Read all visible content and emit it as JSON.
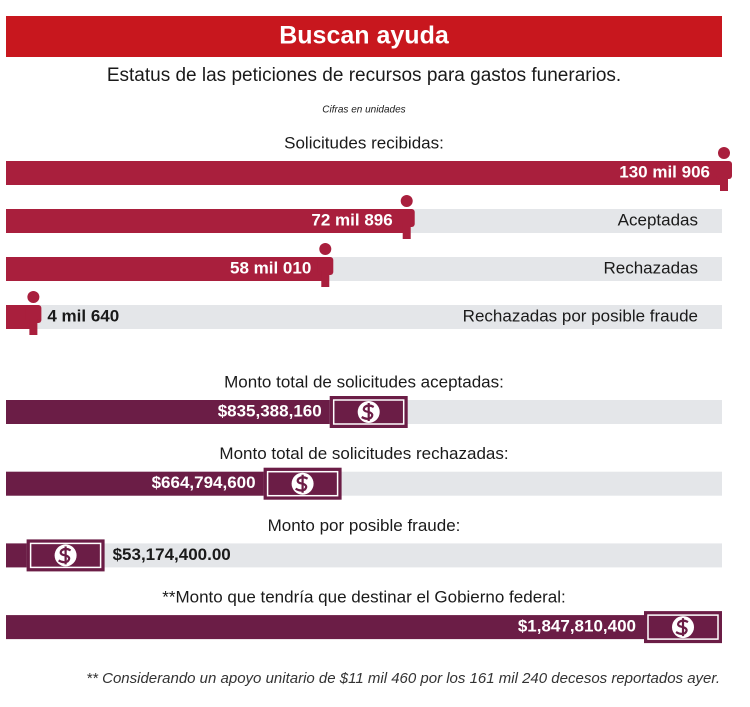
{
  "title": "Buscan ayuda",
  "subtitle": "Estatus de las peticiones de recursos para gastos funerarios.",
  "note": "Cifras en unidades",
  "footnote": "** Considerando un apoyo unitario de $11 mil 460 por los 161 mil 240 decesos reportados ayer.",
  "chart_data": [
    {
      "type": "bar",
      "categories": [
        "Solicitudes recibidas:",
        "Aceptadas",
        "Rechazadas",
        "Rechazadas por posible fraude"
      ],
      "values": [
        130906,
        72896,
        58010,
        4640
      ],
      "value_labels": [
        "130 mil 906",
        "72 mil 896",
        "58 mil 010",
        "4 mil 640"
      ],
      "color": "#a91f3d"
    },
    {
      "type": "bar",
      "categories": [
        "Monto total de solicitudes aceptadas:",
        "Monto total de solicitudes rechazadas:",
        "Monto por posible fraude:",
        "**Monto que tendría que destinar el Gobierno federal:"
      ],
      "values": [
        835388160,
        664794600,
        53174400,
        1847810400
      ],
      "value_labels": [
        "$835,388,160",
        "$664,794,600",
        "$53,174,400.00",
        "$1,847,810,400"
      ],
      "color": "#6b1d46"
    }
  ]
}
